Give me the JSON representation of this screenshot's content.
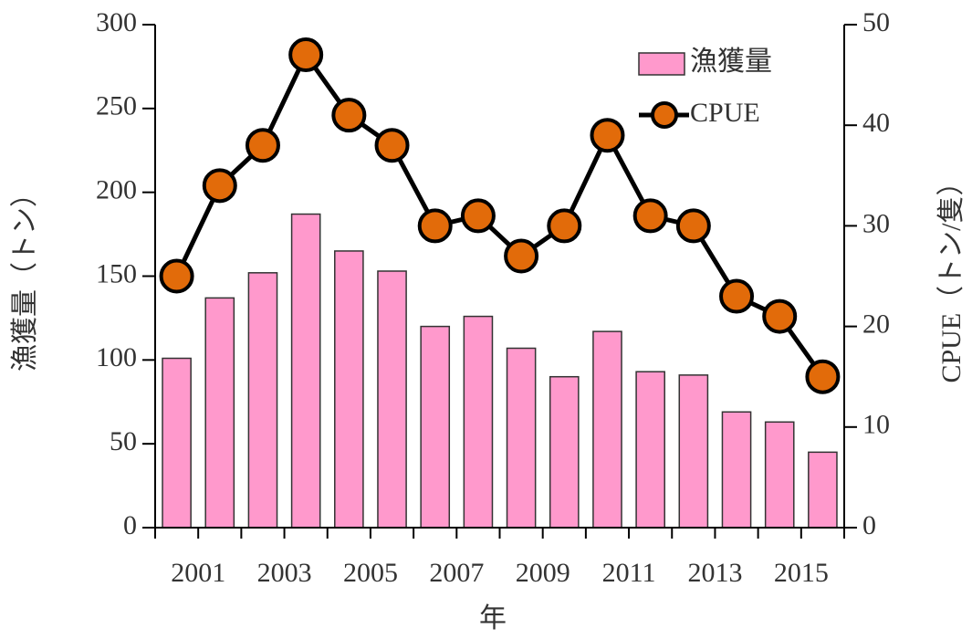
{
  "chart_data": {
    "type": "bar-line",
    "categories": [
      "2001",
      null,
      "2003",
      null,
      "2005",
      null,
      "2007",
      null,
      "2009",
      null,
      "2011",
      null,
      "2013",
      null,
      "2015",
      null
    ],
    "xlabel": "年",
    "ylabel": "漁獲量（トン）",
    "y2label": "CPUE（トン/隻）",
    "series": [
      {
        "name": "漁獲量",
        "type": "bar",
        "color": "#ff99cc",
        "axis": "y",
        "values": [
          101,
          137,
          152,
          187,
          165,
          153,
          120,
          126,
          107,
          90,
          117,
          93,
          91,
          69,
          63,
          45
        ]
      },
      {
        "name": "CPUE",
        "type": "line",
        "color": "#e26b0a",
        "axis": "y2",
        "values": [
          25,
          34,
          38,
          47,
          41,
          38,
          30,
          31,
          27,
          30,
          39,
          31,
          30,
          23,
          21,
          15
        ]
      }
    ],
    "ylim": [
      0,
      300
    ],
    "yticks": [
      0,
      50,
      100,
      150,
      200,
      250,
      300
    ],
    "y2lim": [
      0,
      50
    ],
    "y2ticks": [
      0,
      10,
      20,
      30,
      40,
      50
    ],
    "legend": "upper right"
  }
}
